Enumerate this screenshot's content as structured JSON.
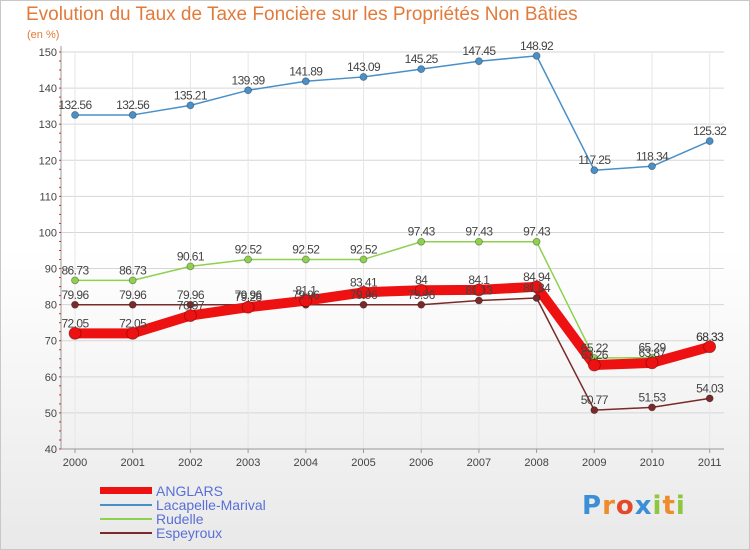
{
  "chart_data": {
    "type": "line",
    "title": "Evolution du Taux de Taxe Foncière sur les Propriétés Non Bâties",
    "unit_label": "(en %)",
    "xlabel": "",
    "ylabel": "(en %)",
    "categories": [
      "2000",
      "2001",
      "2002",
      "2003",
      "2004",
      "2005",
      "2006",
      "2007",
      "2008",
      "2009",
      "2010",
      "2011"
    ],
    "ylim": [
      40,
      150
    ],
    "yticks": [
      40,
      50,
      60,
      70,
      80,
      90,
      100,
      110,
      120,
      130,
      140,
      150
    ],
    "grid": true,
    "series": [
      {
        "name": "Lacapelle-Marival",
        "color": "#4a90c8",
        "values": [
          132.56,
          132.56,
          135.21,
          139.39,
          141.89,
          143.09,
          145.25,
          147.45,
          148.92,
          117.25,
          118.34,
          125.32
        ],
        "labels": [
          "132.56",
          "132.56",
          "135.21",
          "139.39",
          "141.89",
          "143.09",
          "145.25",
          "147.45",
          "148.92",
          "117.25",
          "118.34",
          "125.32"
        ]
      },
      {
        "name": "Rudelle",
        "color": "#8fd14f",
        "values": [
          86.73,
          86.73,
          90.61,
          92.52,
          92.52,
          92.52,
          97.43,
          97.43,
          97.43,
          65.22,
          65.29,
          68.33
        ],
        "labels": [
          "86.73",
          "86.73",
          "90.61",
          "92.52",
          "92.52",
          "92.52",
          "97.43",
          "97.43",
          "97.43",
          "65.22",
          "65.29",
          "68.33"
        ]
      },
      {
        "name": "Espeyroux",
        "color": "#7a2a2a",
        "values": [
          79.96,
          79.96,
          79.96,
          79.96,
          79.96,
          79.96,
          79.96,
          81.13,
          81.84,
          50.77,
          51.53,
          54.03
        ],
        "labels": [
          "79.96",
          "79.96",
          "79.96",
          "79.96",
          "79.96",
          "79.96",
          "79.96",
          "81.13",
          "81.84",
          "50.77",
          "51.53",
          "54.03"
        ]
      },
      {
        "name": "ANGLARS",
        "color": "#ee1111",
        "values": [
          72.05,
          72.05,
          76.97,
          79.28,
          81.1,
          83.41,
          84,
          84.1,
          84.94,
          63.26,
          63.87,
          68.33
        ],
        "labels": [
          "72.05",
          "72.05",
          "76.97",
          "79.28",
          "81.1",
          "83.41",
          "84",
          "84.1",
          "84.94",
          "63.26",
          "63.87",
          "68.33"
        ]
      }
    ],
    "legend": [
      {
        "name": "ANGLARS",
        "color": "#ee1111"
      },
      {
        "name": "Lacapelle-Marival",
        "color": "#4a90c8"
      },
      {
        "name": "Rudelle",
        "color": "#8fd14f"
      },
      {
        "name": "Espeyroux",
        "color": "#7a2a2a"
      }
    ],
    "legend_position": "bottom-left"
  },
  "brand": {
    "logo_letters": [
      "P",
      "r",
      "o",
      "x",
      "i",
      "t",
      "i"
    ],
    "logo_colors": [
      "#3a8fd6",
      "#ee8b2a",
      "#e44a2a",
      "#3a8fd6",
      "#8ec63f",
      "#ee8b2a",
      "#8ec63f"
    ]
  }
}
